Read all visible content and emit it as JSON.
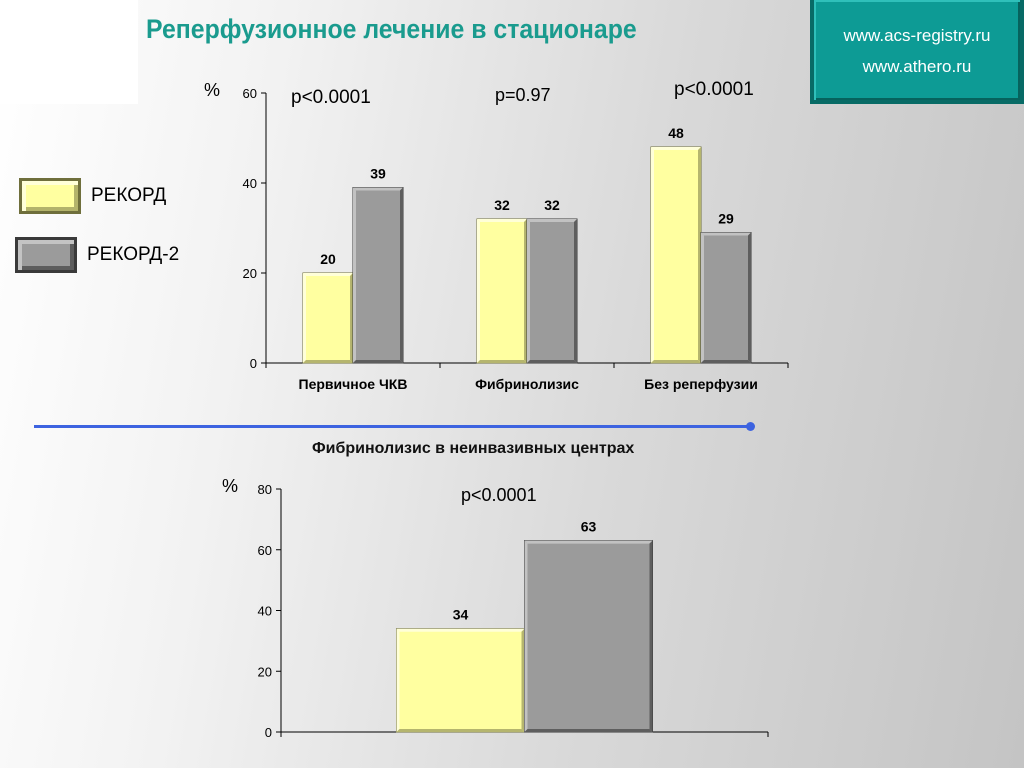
{
  "title": "Реперфузионное лечение в стационаре",
  "websites": [
    "www.acs-registry.ru",
    "www.athero.ru"
  ],
  "legend": [
    {
      "label": "РЕКОРД",
      "color": "#ffffa0"
    },
    {
      "label": "РЕКОРД-2",
      "color": "#9b9b9b"
    }
  ],
  "colors": {
    "rekord": "#ffffa0",
    "rekord2": "#9b9b9b",
    "accent": "#1a9b8e",
    "divider": "#3d63e0"
  },
  "chart_data": [
    {
      "type": "bar",
      "ylabel": "%",
      "ylim": [
        0,
        60
      ],
      "yticks": [
        0,
        20,
        40,
        60
      ],
      "categories": [
        "Первичное ЧКВ",
        "Фибринолизис",
        "Без реперфузии"
      ],
      "series": [
        {
          "name": "РЕКОРД",
          "values": [
            20,
            32,
            48
          ]
        },
        {
          "name": "РЕКОРД-2",
          "values": [
            39,
            32,
            29
          ]
        }
      ],
      "annotations": [
        "p<0.0001",
        "p=0.97",
        "p<0.0001"
      ],
      "grid": false
    },
    {
      "type": "bar",
      "title": "Фибринолизис в неинвазивных центрах",
      "ylabel": "%",
      "ylim": [
        0,
        80
      ],
      "yticks": [
        0,
        20,
        40,
        60,
        80
      ],
      "categories": [
        ""
      ],
      "series": [
        {
          "name": "РЕКОРД",
          "values": [
            34
          ]
        },
        {
          "name": "РЕКОРД-2",
          "values": [
            63
          ]
        }
      ],
      "annotations": [
        "p<0.0001"
      ],
      "grid": false
    }
  ]
}
